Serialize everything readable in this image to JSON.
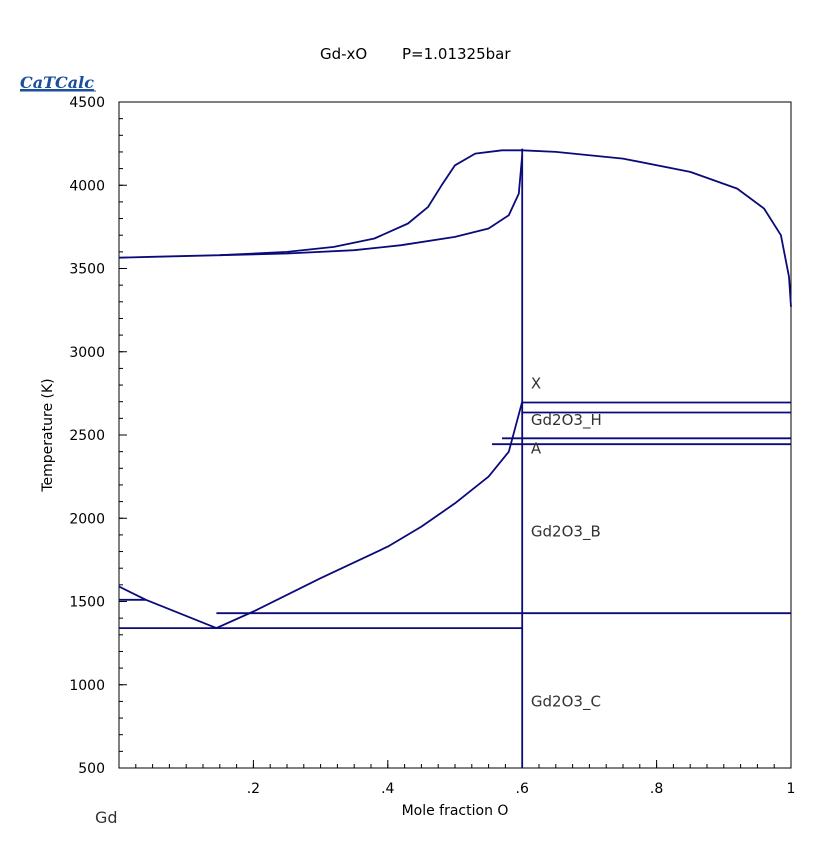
{
  "brand": "CaTCalc",
  "chart_data": {
    "type": "line",
    "title": "Gd-xO",
    "subtitle": "P=1.01325bar",
    "xlabel": "Mole fraction O",
    "ylabel": "Temperature (K)",
    "corner_label": "Gd",
    "xlim": [
      0,
      1
    ],
    "ylim": [
      500,
      4500
    ],
    "x_ticks": [
      {
        "value": 0.2,
        "label": ".2"
      },
      {
        "value": 0.4,
        "label": ".4"
      },
      {
        "value": 0.6,
        "label": ".6"
      },
      {
        "value": 0.8,
        "label": ".8"
      },
      {
        "value": 1.0,
        "label": "1"
      }
    ],
    "y_ticks": [
      {
        "value": 500,
        "label": "500"
      },
      {
        "value": 1000,
        "label": "1000"
      },
      {
        "value": 1500,
        "label": "1500"
      },
      {
        "value": 2000,
        "label": "2000"
      },
      {
        "value": 2500,
        "label": "2500"
      },
      {
        "value": 3000,
        "label": "3000"
      },
      {
        "value": 3500,
        "label": "3500"
      },
      {
        "value": 4000,
        "label": "4000"
      },
      {
        "value": 4500,
        "label": "4500"
      }
    ],
    "line_color": "#0a0a7a",
    "series": [
      {
        "points": [
          [
            0,
            3565
          ],
          [
            0.05,
            3570
          ],
          [
            0.15,
            3580
          ],
          [
            0.25,
            3600
          ],
          [
            0.32,
            3630
          ],
          [
            0.38,
            3680
          ],
          [
            0.43,
            3770
          ],
          [
            0.46,
            3870
          ],
          [
            0.48,
            4000
          ],
          [
            0.5,
            4120
          ],
          [
            0.53,
            4190
          ],
          [
            0.57,
            4210
          ],
          [
            0.6,
            4210
          ]
        ]
      },
      {
        "points": [
          [
            0.15,
            3580
          ],
          [
            0.25,
            3590
          ],
          [
            0.35,
            3610
          ],
          [
            0.42,
            3640
          ],
          [
            0.5,
            3690
          ],
          [
            0.55,
            3740
          ],
          [
            0.58,
            3820
          ],
          [
            0.595,
            3950
          ],
          [
            0.6,
            4180
          ]
        ]
      },
      {
        "points": [
          [
            0.6,
            4210
          ],
          [
            0.65,
            4200
          ],
          [
            0.75,
            4160
          ],
          [
            0.85,
            4080
          ],
          [
            0.92,
            3980
          ],
          [
            0.96,
            3860
          ],
          [
            0.985,
            3700
          ],
          [
            0.997,
            3450
          ],
          [
            1.0,
            3270
          ]
        ]
      },
      {
        "points": [
          [
            0.6,
            500
          ],
          [
            0.6,
            4220
          ]
        ]
      },
      {
        "points": [
          [
            0.6,
            2695
          ],
          [
            1.0,
            2695
          ]
        ]
      },
      {
        "points": [
          [
            0.6,
            2635
          ],
          [
            1.0,
            2635
          ]
        ]
      },
      {
        "points": [
          [
            0.57,
            2480
          ],
          [
            1.0,
            2480
          ]
        ]
      },
      {
        "points": [
          [
            0.555,
            2445
          ],
          [
            1.0,
            2445
          ]
        ]
      },
      {
        "points": [
          [
            0.145,
            1430
          ],
          [
            1.0,
            1430
          ]
        ]
      },
      {
        "points": [
          [
            0,
            1340
          ],
          [
            0.6,
            1340
          ]
        ]
      },
      {
        "points": [
          [
            0,
            1510
          ],
          [
            0.04,
            1510
          ]
        ]
      },
      {
        "points": [
          [
            0,
            1590
          ],
          [
            0.04,
            1510
          ],
          [
            0.145,
            1340
          ]
        ]
      },
      {
        "points": [
          [
            0.145,
            1340
          ],
          [
            0.2,
            1440
          ],
          [
            0.3,
            1640
          ],
          [
            0.4,
            1830
          ],
          [
            0.45,
            1950
          ],
          [
            0.5,
            2090
          ],
          [
            0.55,
            2250
          ],
          [
            0.58,
            2400
          ],
          [
            0.6,
            2700
          ]
        ]
      }
    ],
    "annotations": [
      {
        "text": "X",
        "x": 0.61,
        "y": 2780
      },
      {
        "text": "Gd2O3_H",
        "x": 0.61,
        "y": 2560
      },
      {
        "text": "A",
        "x": 0.61,
        "y": 2390
      },
      {
        "text": "Gd2O3_B",
        "x": 0.61,
        "y": 1890
      },
      {
        "text": "Gd2O3_C",
        "x": 0.61,
        "y": 870
      }
    ]
  }
}
